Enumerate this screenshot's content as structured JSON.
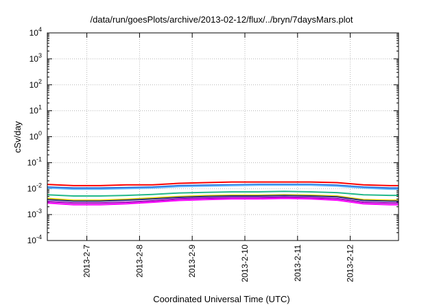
{
  "chart_data": {
    "type": "line",
    "title": "/data/run/goesPlots/archive/2013-02-12/flux/../bryn/7daysMars.plot",
    "xlabel": "Coordinated Universal Time (UTC)",
    "ylabel": "cSv/day",
    "yscale": "log",
    "ylim": [
      0.0001,
      10000
    ],
    "y_ticks": [
      {
        "value": 0.0001,
        "base": "10",
        "exp": "-4"
      },
      {
        "value": 0.001,
        "base": "10",
        "exp": "-3"
      },
      {
        "value": 0.01,
        "base": "10",
        "exp": "-2"
      },
      {
        "value": 0.1,
        "base": "10",
        "exp": "-1"
      },
      {
        "value": 1,
        "base": "10",
        "exp": "0"
      },
      {
        "value": 10,
        "base": "10",
        "exp": "1"
      },
      {
        "value": 100,
        "base": "10",
        "exp": "2"
      },
      {
        "value": 1000,
        "base": "10",
        "exp": "3"
      },
      {
        "value": 10000,
        "base": "10",
        "exp": "4"
      }
    ],
    "xlim": [
      "2013-02-06 06:00",
      "2013-02-12 22:00"
    ],
    "x_ticks": [
      "2013-2-7",
      "2013-2-8",
      "2013-2-9",
      "2013-2-10",
      "2013-2-11",
      "2013-2-12"
    ],
    "grid": true,
    "series_colors": [
      "#ff0000",
      "#1f5fd0",
      "#5fb8ff",
      "#22b88a",
      "#e8d800",
      "#2a2a7a",
      "#a000c0",
      "#ff00ff"
    ],
    "series": [
      {
        "color": "#ff0000",
        "x": [
          "2013-02-06 06:00",
          "2013-02-06 18:00",
          "2013-02-07 06:00",
          "2013-02-07 18:00",
          "2013-02-08 06:00",
          "2013-02-08 18:00",
          "2013-02-09 06:00",
          "2013-02-09 18:00",
          "2013-02-10 06:00",
          "2013-02-10 18:00",
          "2013-02-11 06:00",
          "2013-02-11 18:00",
          "2013-02-12 06:00",
          "2013-02-12 18:00",
          "2013-02-12 22:00"
        ],
        "values": [
          0.0145,
          0.013,
          0.013,
          0.014,
          0.014,
          0.016,
          0.017,
          0.018,
          0.018,
          0.018,
          0.018,
          0.017,
          0.014,
          0.013,
          0.013
        ]
      },
      {
        "color": "#1f5fd0",
        "x": [
          "2013-02-06 06:00",
          "2013-02-06 18:00",
          "2013-02-07 06:00",
          "2013-02-07 18:00",
          "2013-02-08 06:00",
          "2013-02-08 18:00",
          "2013-02-09 06:00",
          "2013-02-09 18:00",
          "2013-02-10 06:00",
          "2013-02-10 18:00",
          "2013-02-11 06:00",
          "2013-02-11 18:00",
          "2013-02-12 06:00",
          "2013-02-12 18:00",
          "2013-02-12 22:00"
        ],
        "values": [
          0.0115,
          0.0105,
          0.0105,
          0.011,
          0.0115,
          0.013,
          0.0135,
          0.014,
          0.0145,
          0.0145,
          0.0145,
          0.0135,
          0.0115,
          0.0105,
          0.0105
        ]
      },
      {
        "color": "#5fb8ff",
        "x": [
          "2013-02-06 06:00",
          "2013-02-06 18:00",
          "2013-02-07 06:00",
          "2013-02-07 18:00",
          "2013-02-08 06:00",
          "2013-02-08 18:00",
          "2013-02-09 06:00",
          "2013-02-09 18:00",
          "2013-02-10 06:00",
          "2013-02-10 18:00",
          "2013-02-11 06:00",
          "2013-02-11 18:00",
          "2013-02-12 06:00",
          "2013-02-12 18:00",
          "2013-02-12 22:00"
        ],
        "values": [
          0.0105,
          0.0095,
          0.0095,
          0.01,
          0.0105,
          0.012,
          0.0125,
          0.013,
          0.0135,
          0.0135,
          0.0135,
          0.0125,
          0.0105,
          0.0095,
          0.0095
        ]
      },
      {
        "color": "#22b88a",
        "x": [
          "2013-02-06 06:00",
          "2013-02-06 18:00",
          "2013-02-07 06:00",
          "2013-02-07 18:00",
          "2013-02-08 06:00",
          "2013-02-08 18:00",
          "2013-02-09 06:00",
          "2013-02-09 18:00",
          "2013-02-10 06:00",
          "2013-02-10 18:00",
          "2013-02-11 06:00",
          "2013-02-11 18:00",
          "2013-02-12 06:00",
          "2013-02-12 18:00",
          "2013-02-12 22:00"
        ],
        "values": [
          0.0058,
          0.0052,
          0.0052,
          0.0055,
          0.006,
          0.0068,
          0.0072,
          0.0075,
          0.0075,
          0.0078,
          0.0075,
          0.007,
          0.0058,
          0.0055,
          0.0055
        ]
      },
      {
        "color": "#e8d800",
        "x": [
          "2013-02-06 06:00",
          "2013-02-06 18:00",
          "2013-02-07 06:00",
          "2013-02-07 18:00",
          "2013-02-08 06:00",
          "2013-02-08 18:00",
          "2013-02-09 06:00",
          "2013-02-09 18:00",
          "2013-02-10 06:00",
          "2013-02-10 18:00",
          "2013-02-11 06:00",
          "2013-02-11 18:00",
          "2013-02-12 06:00",
          "2013-02-12 18:00",
          "2013-02-12 22:00"
        ],
        "values": [
          0.0042,
          0.0036,
          0.0036,
          0.0039,
          0.0044,
          0.005,
          0.0054,
          0.0056,
          0.0056,
          0.0058,
          0.0056,
          0.0052,
          0.0038,
          0.0036,
          0.0036
        ]
      },
      {
        "color": "#2a2a7a",
        "x": [
          "2013-02-06 06:00",
          "2013-02-06 18:00",
          "2013-02-07 06:00",
          "2013-02-07 18:00",
          "2013-02-08 06:00",
          "2013-02-08 18:00",
          "2013-02-09 06:00",
          "2013-02-09 18:00",
          "2013-02-10 06:00",
          "2013-02-10 18:00",
          "2013-02-11 06:00",
          "2013-02-11 18:00",
          "2013-02-12 06:00",
          "2013-02-12 18:00",
          "2013-02-12 22:00"
        ],
        "values": [
          0.0038,
          0.0033,
          0.0033,
          0.0036,
          0.004,
          0.0046,
          0.005,
          0.0052,
          0.0052,
          0.0054,
          0.0052,
          0.0048,
          0.0035,
          0.0033,
          0.0033
        ]
      },
      {
        "color": "#a000c0",
        "x": [
          "2013-02-06 06:00",
          "2013-02-06 18:00",
          "2013-02-07 06:00",
          "2013-02-07 18:00",
          "2013-02-08 06:00",
          "2013-02-08 18:00",
          "2013-02-09 06:00",
          "2013-02-09 18:00",
          "2013-02-10 06:00",
          "2013-02-10 18:00",
          "2013-02-11 06:00",
          "2013-02-11 18:00",
          "2013-02-12 06:00",
          "2013-02-12 18:00",
          "2013-02-12 22:00"
        ],
        "values": [
          0.0032,
          0.0028,
          0.0028,
          0.003,
          0.0034,
          0.004,
          0.0043,
          0.0045,
          0.0045,
          0.0047,
          0.0045,
          0.0041,
          0.003,
          0.0028,
          0.0028
        ]
      },
      {
        "color": "#ff00ff",
        "x": [
          "2013-02-06 06:00",
          "2013-02-06 18:00",
          "2013-02-07 06:00",
          "2013-02-07 18:00",
          "2013-02-08 06:00",
          "2013-02-08 18:00",
          "2013-02-09 06:00",
          "2013-02-09 18:00",
          "2013-02-10 06:00",
          "2013-02-10 18:00",
          "2013-02-11 06:00",
          "2013-02-11 18:00",
          "2013-02-12 06:00",
          "2013-02-12 18:00",
          "2013-02-12 22:00"
        ],
        "values": [
          0.0028,
          0.0024,
          0.0024,
          0.0026,
          0.003,
          0.0035,
          0.0038,
          0.004,
          0.004,
          0.0042,
          0.004,
          0.0036,
          0.0026,
          0.0024,
          0.0024
        ]
      }
    ]
  }
}
